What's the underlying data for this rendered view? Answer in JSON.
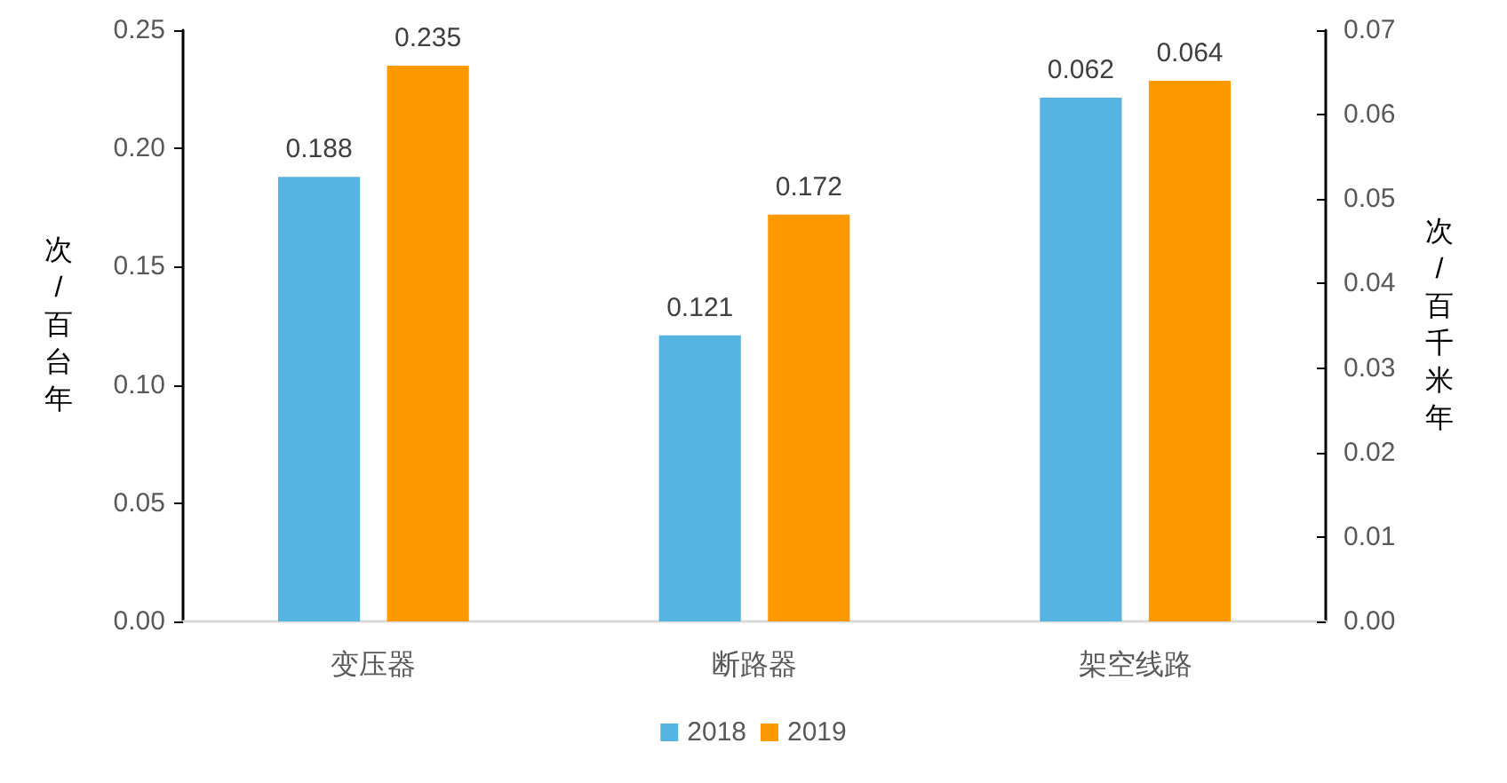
{
  "chart_data": {
    "type": "bar",
    "categories": [
      "变压器",
      "断路器",
      "架空线路"
    ],
    "series": [
      {
        "name": "2018",
        "color": "#56b4e3",
        "values": [
          0.188,
          0.121,
          null
        ]
      },
      {
        "name": "2019",
        "color": "#ff9900",
        "values": [
          0.235,
          0.172,
          null
        ]
      },
      {
        "color": "#56b4e3",
        "values": [
          null,
          null,
          0.062
        ],
        "axis": "y2"
      },
      {
        "color": "#ff9900",
        "values": [
          null,
          null,
          0.064
        ],
        "axis": "y2"
      }
    ],
    "ylabel": "次/百台年",
    "y2label": "次/百千米年",
    "ylim": [
      0,
      0.25
    ],
    "yticks": [
      {
        "value": 0,
        "label": "0.00"
      },
      {
        "value": 0.05,
        "label": "0.05"
      },
      {
        "value": 0.1,
        "label": "0.10"
      },
      {
        "value": 0.15,
        "label": "0.15"
      },
      {
        "value": 0.2,
        "label": "0.20"
      },
      {
        "value": 0.25,
        "label": "0.25"
      }
    ],
    "y2lim": [
      0,
      0.07
    ],
    "y2ticks": [
      {
        "value": 0,
        "label": "0.00"
      },
      {
        "value": 0.01,
        "label": "0.01"
      },
      {
        "value": 0.02,
        "label": "0.02"
      },
      {
        "value": 0.03,
        "label": "0.03"
      },
      {
        "value": 0.04,
        "label": "0.04"
      },
      {
        "value": 0.05,
        "label": "0.05"
      },
      {
        "value": 0.06,
        "label": "0.06"
      },
      {
        "value": 0.07,
        "label": "0.07"
      }
    ],
    "data_labels": true,
    "grid": false,
    "legend": "bottom"
  }
}
